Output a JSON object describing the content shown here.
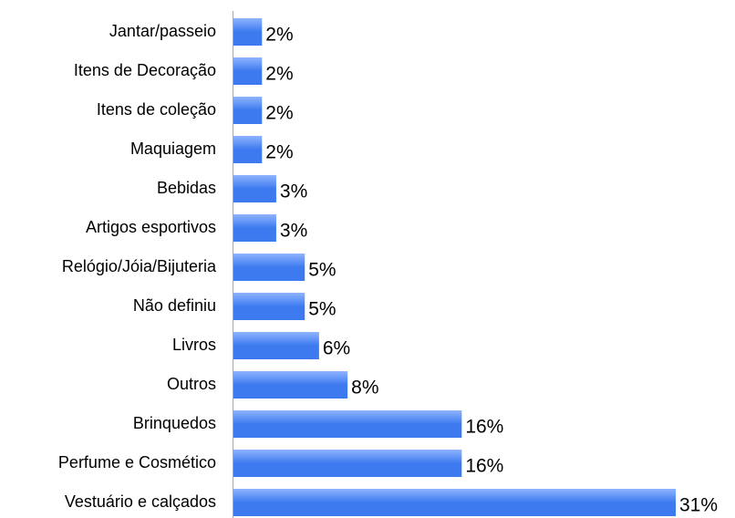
{
  "chart_data": {
    "type": "bar",
    "orientation": "horizontal",
    "categories": [
      "Jantar/passeio",
      "Itens de Decoração",
      "Itens de coleção",
      "Maquiagem",
      "Bebidas",
      "Artigos esportivos",
      "Relógio/Jóia/Bijuteria",
      "Não definiu",
      "Livros",
      "Outros",
      "Brinquedos",
      "Perfume e Cosmético",
      "Vestuário e calçados"
    ],
    "values": [
      2,
      2,
      2,
      2,
      3,
      3,
      5,
      5,
      6,
      8,
      16,
      16,
      31
    ],
    "value_labels": [
      "2%",
      "2%",
      "2%",
      "2%",
      "3%",
      "3%",
      "5%",
      "5%",
      "6%",
      "8%",
      "16%",
      "16%",
      "31%"
    ],
    "color": "#3d7af0"
  }
}
